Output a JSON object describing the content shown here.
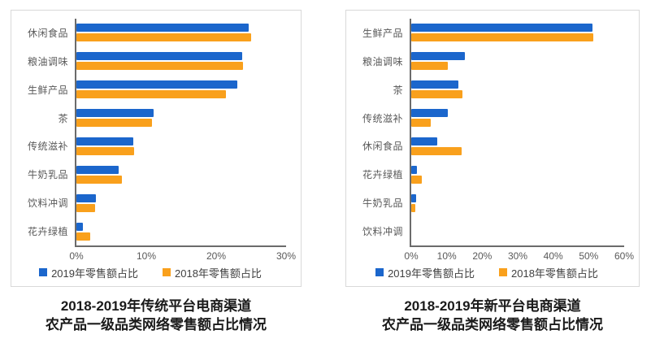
{
  "colors": {
    "series_2019": "#1b66cc",
    "series_2018": "#f9a01c",
    "axis": "#6b6b6b",
    "label_text": "#595959",
    "panel_border": "#d9d9d9",
    "title_text": "#1a1a1a"
  },
  "legend": {
    "items": [
      {
        "label": "2019年零售额占比",
        "color": "#1b66cc"
      },
      {
        "label": "2018年零售额占比",
        "color": "#f9a01c"
      }
    ]
  },
  "chart_data": [
    {
      "type": "bar",
      "orientation": "horizontal",
      "title": "2018-2019年传统平台电商渠道",
      "subtitle": "农产品一级品类网络零售额占比情况",
      "categories": [
        "休闲食品",
        "粮油调味",
        "生鲜产品",
        "茶",
        "传统滋补",
        "牛奶乳品",
        "饮料冲调",
        "花卉绿植"
      ],
      "series": [
        {
          "name": "2019年零售额占比",
          "color": "#1b66cc",
          "values": [
            24.7,
            23.7,
            23.0,
            11.0,
            8.1,
            6.0,
            2.8,
            0.9
          ]
        },
        {
          "name": "2018年零售额占比",
          "color": "#f9a01c",
          "values": [
            25.0,
            23.8,
            21.4,
            10.8,
            8.2,
            6.5,
            2.7,
            2.0
          ]
        }
      ],
      "xlim": [
        0,
        30
      ],
      "xticks": [
        "0%",
        "10%",
        "20%",
        "30%"
      ],
      "xlabel": "",
      "ylabel": "",
      "grid": false,
      "legend_position": "bottom"
    },
    {
      "type": "bar",
      "orientation": "horizontal",
      "title": "2018-2019年新平台电商渠道",
      "subtitle": "农产品一级品类网络零售额占比情况",
      "categories": [
        "生鲜产品",
        "粮油调味",
        "茶",
        "传统滋补",
        "休闲食品",
        "花卉绿植",
        "牛奶乳品",
        "饮料冲调"
      ],
      "series": [
        {
          "name": "2019年零售额占比",
          "color": "#1b66cc",
          "values": [
            51.0,
            15.0,
            13.3,
            10.3,
            7.4,
            1.6,
            1.4,
            0
          ]
        },
        {
          "name": "2018年零售额占比",
          "color": "#f9a01c",
          "values": [
            51.3,
            10.4,
            14.4,
            5.6,
            14.2,
            3.0,
            1.2,
            0
          ]
        }
      ],
      "xlim": [
        0,
        60
      ],
      "xticks": [
        "0%",
        "10%",
        "20%",
        "30%",
        "40%",
        "50%",
        "60%"
      ],
      "xlabel": "",
      "ylabel": "",
      "grid": false,
      "legend_position": "bottom"
    }
  ]
}
